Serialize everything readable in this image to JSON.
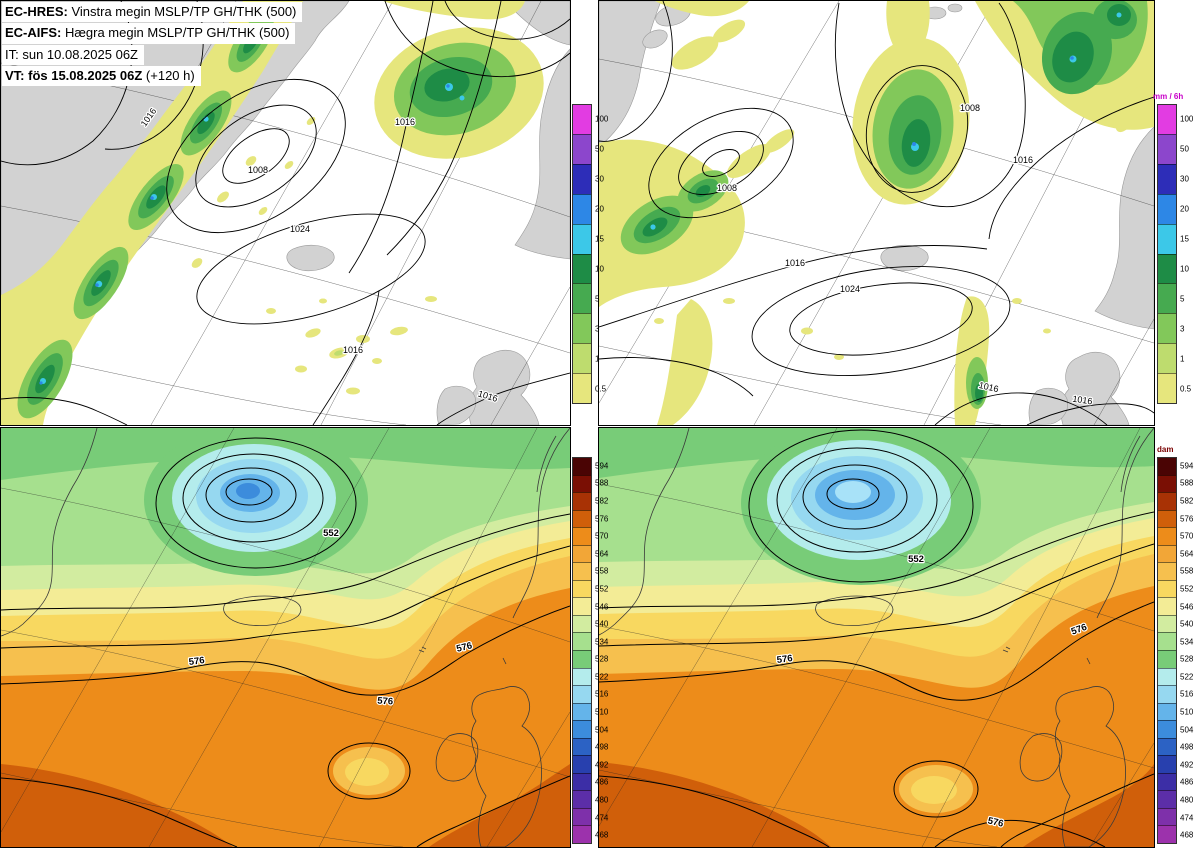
{
  "header": {
    "l1b": "EC-HRES:",
    "l1": " Vinstra megin MSLP/TP GH/THK (500)",
    "l2b": "EC-AIFS:",
    "l2": " Hægra megin MSLP/TP GH/THK (500)",
    "l3": "IT: sun 10.08.2025 06Z",
    "l4b": "VT: fös 15.08.2025 06Z",
    "l4": " (+120 h)"
  },
  "scales": {
    "precip": {
      "title": "mm / 6h",
      "title_color": "#c800c8",
      "ticks": [
        "100",
        "50",
        "30",
        "20",
        "15",
        "10",
        "5",
        "3",
        "1",
        "0.5"
      ],
      "colors": [
        "#e23ce2",
        "#8c46cc",
        "#2d2db8",
        "#2d87e6",
        "#3cc8e8",
        "#1e8c46",
        "#46aa50",
        "#82c85a",
        "#bedc6e",
        "#e6e67d"
      ]
    },
    "height": {
      "title": "dam",
      "title_color": "#7a0000",
      "ticks": [
        "594",
        "588",
        "582",
        "576",
        "570",
        "564",
        "558",
        "552",
        "546",
        "540",
        "534",
        "528",
        "522",
        "516",
        "510",
        "504",
        "498",
        "492",
        "486",
        "480",
        "474",
        "468"
      ],
      "colors": [
        "#4a0404",
        "#7a0f04",
        "#a83205",
        "#d05f0a",
        "#ed8c1a",
        "#f2a637",
        "#f6c04e",
        "#f8d860",
        "#f3ec96",
        "#d2eca0",
        "#a6e08e",
        "#78cc78",
        "#b4ecec",
        "#96d8f0",
        "#64b4ea",
        "#3c8cdc",
        "#2c62c4",
        "#2840ae",
        "#3c2ea6",
        "#5c2ea8",
        "#7e30aa",
        "#9c32ac"
      ]
    }
  },
  "panels": {
    "top_left": {
      "isobars": [
        "1016",
        "1008",
        "1016",
        "1024",
        "1016",
        "1016"
      ]
    },
    "top_right": {
      "isobars": [
        "1008",
        "1016",
        "1016",
        "1024",
        "1016",
        "1016",
        "1008"
      ]
    },
    "bottom_left": {
      "heights": [
        "552",
        "576",
        "576",
        "576"
      ]
    },
    "bottom_right": {
      "heights": [
        "552",
        "576",
        "576",
        "576"
      ]
    }
  }
}
